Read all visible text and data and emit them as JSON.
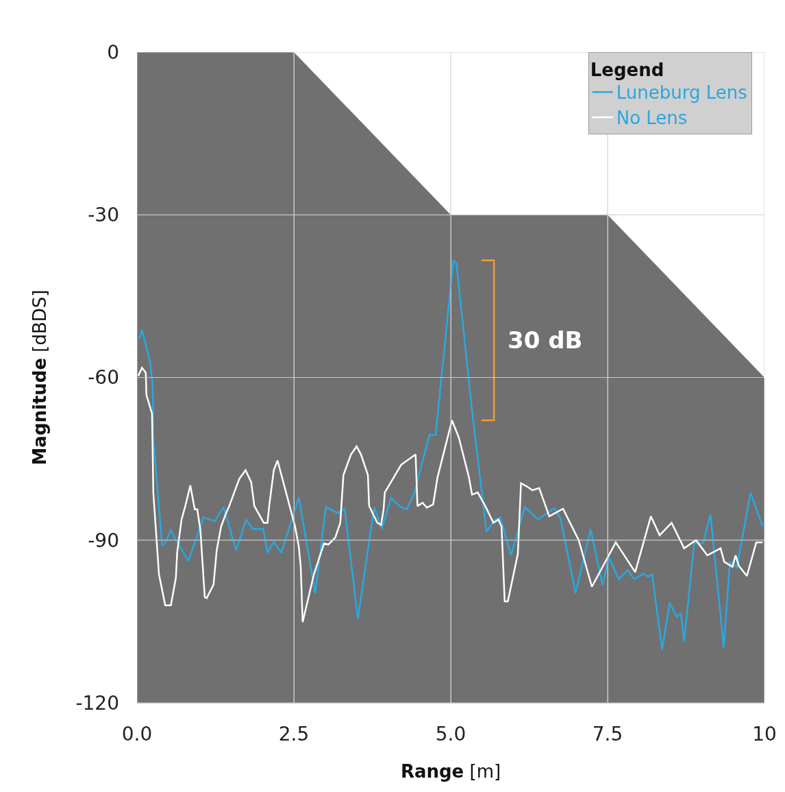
{
  "chart_data": {
    "type": "line",
    "xlabel": "Range [m]",
    "ylabel": "Magnitude [dBDS]",
    "legend_title": "Legend",
    "legend": "top right",
    "grid": true,
    "xlim": [
      0,
      10
    ],
    "xticks": [
      {
        "value": 0,
        "label": "0.0"
      },
      {
        "value": 2.5,
        "label": "2.5"
      },
      {
        "value": 5,
        "label": "5.0"
      },
      {
        "value": 7.5,
        "label": "7.5"
      },
      10
    ],
    "ylim": [
      -120,
      0
    ],
    "yticks": [
      0,
      -30,
      -60,
      -90,
      -120
    ],
    "annotations": [
      "30 dB"
    ],
    "series": [
      {
        "type": "area",
        "color": "#ffffff",
        "x": [
          0,
          2.5,
          5,
          7.5,
          10
        ],
        "values": [
          0,
          0,
          -30,
          -30,
          -60
        ]
      },
      {
        "name": "Luneburg Lens",
        "color": "#29a8e0",
        "x": [
          0.04,
          0.08,
          0.21,
          0.25,
          0.26,
          0.4,
          0.45,
          0.54,
          0.62,
          0.82,
          1.06,
          1.24,
          1.38,
          1.58,
          1.74,
          1.84,
          2.01,
          2.08,
          2.18,
          2.3,
          2.58,
          2.84,
          3.01,
          3.2,
          3.31,
          3.52,
          3.78,
          3.9,
          4.05,
          4.19,
          4.3,
          4.42,
          4.66,
          4.76,
          5.04,
          5.09,
          5.34,
          5.57,
          5.7,
          5.79,
          5.96,
          6.18,
          6.39,
          6.65,
          6.75,
          6.99,
          7.23,
          7.42,
          7.52,
          7.68,
          7.82,
          7.92,
          8.07,
          8.14,
          8.21,
          8.37,
          8.49,
          8.6,
          8.67,
          8.72,
          8.88,
          9.02,
          9.14,
          9.35,
          9.45,
          9.56,
          9.78,
          9.97
        ],
        "values": [
          -52.8,
          -51.2,
          -57.2,
          -61.6,
          -71.1,
          -91.0,
          -90.6,
          -88.1,
          -90.0,
          -93.8,
          -85.8,
          -86.5,
          -83.9,
          -91.9,
          -86.2,
          -87.9,
          -87.9,
          -92.3,
          -90.3,
          -92.3,
          -82.1,
          -99.8,
          -83.9,
          -85.0,
          -84.2,
          -104.5,
          -83.9,
          -87.9,
          -82.2,
          -83.8,
          -84.3,
          -81.3,
          -70.6,
          -70.6,
          -38.4,
          -38.9,
          -66.1,
          -88.5,
          -86.2,
          -85.8,
          -92.8,
          -83.9,
          -86.2,
          -84.1,
          -86.0,
          -99.8,
          -88.0,
          -98.3,
          -93.2,
          -97.2,
          -95.5,
          -97.2,
          -96.2,
          -96.7,
          -96.3,
          -110.2,
          -101.5,
          -104.1,
          -103.5,
          -108.7,
          -90.6,
          -90.6,
          -85.3,
          -109.8,
          -94.0,
          -95.0,
          -81.2,
          -87.5
        ]
      },
      {
        "name": "No Lens",
        "color": "#ffffff",
        "x": [
          0.02,
          0.08,
          0.14,
          0.15,
          0.24,
          0.26,
          0.35,
          0.45,
          0.54,
          0.62,
          0.64,
          0.71,
          0.77,
          0.85,
          0.92,
          0.96,
          1.01,
          1.08,
          1.11,
          1.22,
          1.27,
          1.34,
          1.42,
          1.47,
          1.63,
          1.73,
          1.82,
          1.87,
          2.02,
          2.08,
          2.11,
          2.18,
          2.24,
          2.52,
          2.58,
          2.61,
          2.64,
          2.82,
          2.98,
          3.05,
          3.16,
          3.24,
          3.29,
          3.41,
          3.5,
          3.57,
          3.68,
          3.7,
          3.83,
          3.89,
          3.93,
          3.95,
          4.21,
          4.44,
          4.47,
          4.55,
          4.62,
          4.72,
          4.79,
          5.02,
          5.13,
          5.29,
          5.34,
          5.43,
          5.55,
          5.68,
          5.76,
          5.81,
          5.86,
          5.91,
          6.07,
          6.12,
          6.23,
          6.3,
          6.41,
          6.57,
          6.79,
          7.04,
          7.25,
          7.63,
          7.94,
          8.19,
          8.33,
          8.52,
          8.72,
          8.91,
          9.09,
          9.3,
          9.36,
          9.49,
          9.54,
          9.59,
          9.72,
          9.87,
          9.97
        ],
        "values": [
          -59.7,
          -58.2,
          -59.1,
          -63.2,
          -66.7,
          -81.2,
          -96.3,
          -102.0,
          -102.0,
          -96.9,
          -92.3,
          -86.2,
          -83.7,
          -79.9,
          -84.3,
          -84.3,
          -88.1,
          -100.5,
          -100.7,
          -98.2,
          -91.9,
          -87.5,
          -85.0,
          -83.7,
          -78.7,
          -77.1,
          -79.3,
          -83.7,
          -86.8,
          -86.8,
          -83.4,
          -77.1,
          -75.3,
          -87.5,
          -91.3,
          -95.0,
          -105.1,
          -96.3,
          -90.6,
          -90.8,
          -89.5,
          -86.8,
          -78.0,
          -74.2,
          -72.7,
          -74.2,
          -78.0,
          -83.7,
          -86.8,
          -87.2,
          -84.3,
          -81.2,
          -76.1,
          -74.2,
          -83.7,
          -83.1,
          -84.0,
          -83.4,
          -78.4,
          -67.9,
          -71.1,
          -78.4,
          -81.6,
          -81.2,
          -83.7,
          -86.8,
          -86.2,
          -87.5,
          -101.3,
          -101.3,
          -92.5,
          -79.5,
          -80.2,
          -80.8,
          -80.4,
          -85.6,
          -84.2,
          -90.0,
          -98.6,
          -90.4,
          -95.9,
          -85.6,
          -89.1,
          -86.8,
          -91.5,
          -90.0,
          -92.8,
          -91.5,
          -94.0,
          -94.9,
          -92.8,
          -94.7,
          -96.6,
          -90.4,
          -90.4
        ]
      }
    ]
  }
}
